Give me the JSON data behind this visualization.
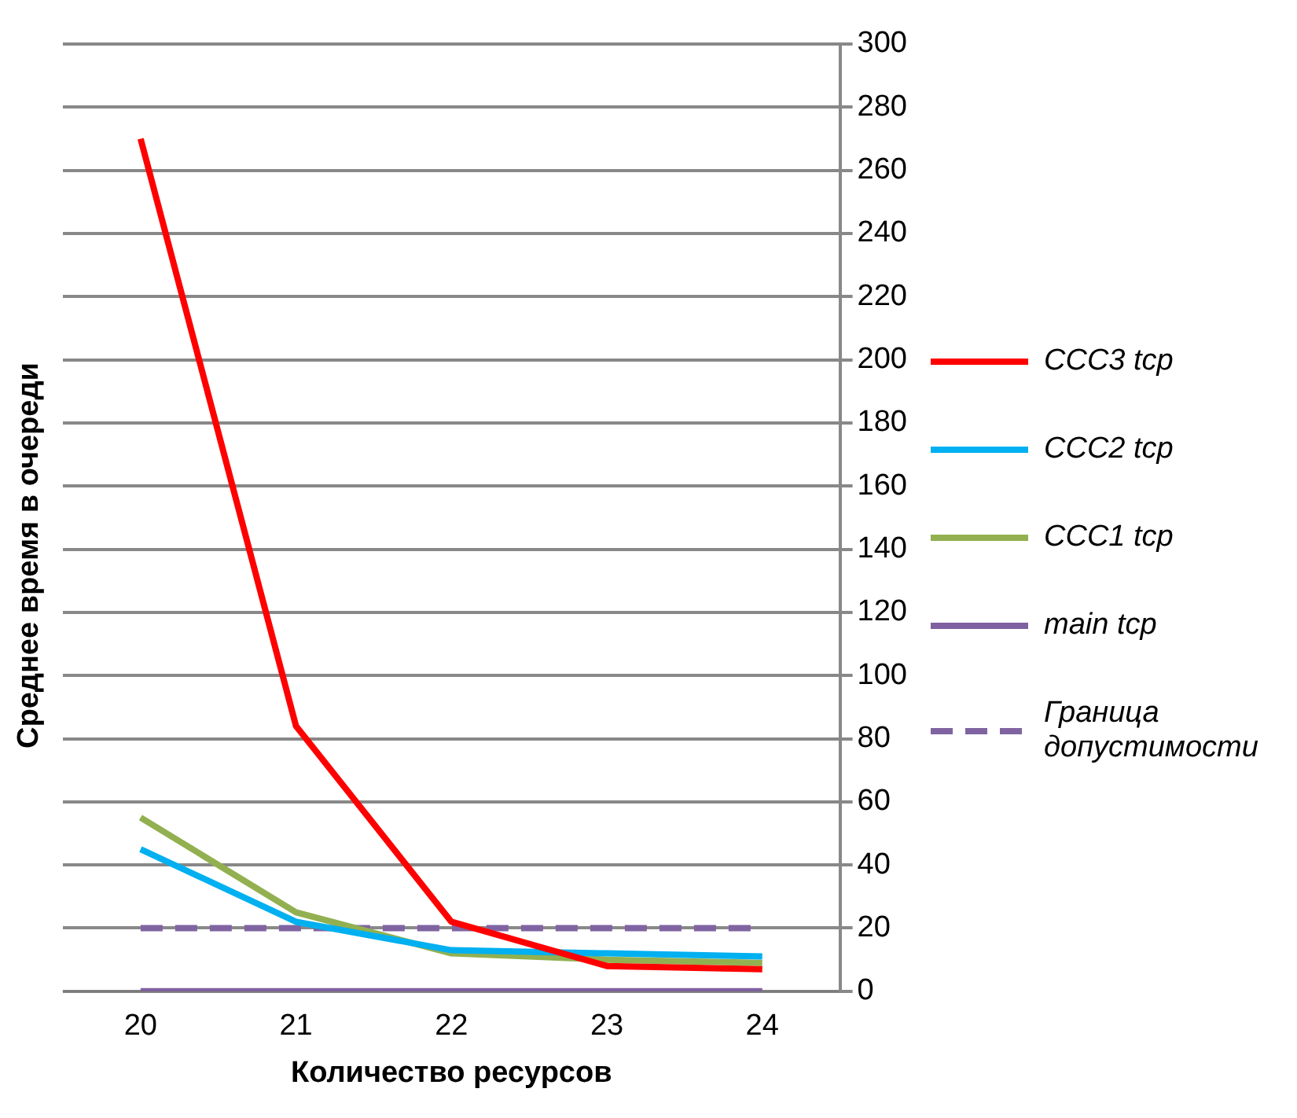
{
  "chart_data": {
    "type": "line",
    "xlabel": "Количество ресурсов",
    "ylabel": "Среднее время в очереди",
    "categories": [
      "20",
      "21",
      "22",
      "23",
      "24"
    ],
    "series": [
      {
        "name": "CCC3 tcp",
        "color": "#ff0000",
        "values": [
          270,
          84,
          22,
          8,
          7
        ]
      },
      {
        "name": "CCC2 tcp",
        "color": "#00b0f0",
        "values": [
          45,
          22,
          13,
          12,
          11
        ]
      },
      {
        "name": "CCC1 tcp",
        "color": "#92b050",
        "values": [
          55,
          25,
          12,
          10,
          9
        ]
      },
      {
        "name": "main tcp",
        "color": "#7f60a0",
        "values": [
          0,
          0,
          0,
          0,
          0
        ]
      },
      {
        "name": "Граница допустимости",
        "color": "#8064a2",
        "values": [
          20,
          20,
          20,
          20,
          20
        ],
        "line_style": "dashed"
      }
    ],
    "ylim": [
      0,
      300
    ],
    "yticks": [
      0,
      20,
      40,
      60,
      80,
      100,
      120,
      140,
      160,
      180,
      200,
      220,
      240,
      260,
      280,
      300
    ],
    "grid": "y",
    "legend": "right",
    "marker": "none"
  }
}
